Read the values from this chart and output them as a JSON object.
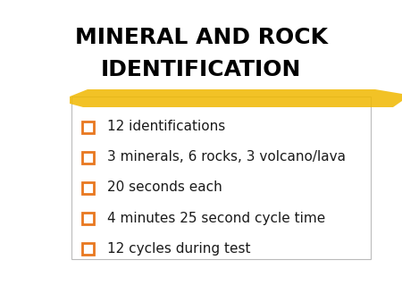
{
  "title_line1": "MINERAL AND ROCK",
  "title_line2": "IDENTIFICATION",
  "bullet_items": [
    "12 identifications",
    "3 minerals, 6 rocks, 3 volcano/lava",
    "20 seconds each",
    "4 minutes 25 second cycle time",
    "12 cycles during test"
  ],
  "bg_color": "#ffffff",
  "title_color": "#000000",
  "bullet_color": "#1a1a1a",
  "checkbox_color": "#e87820",
  "highlight_color": "#f0b800",
  "content_box_facecolor": "#ffffff",
  "content_box_edgecolor": "#bbbbbb",
  "title_fontsize": 18,
  "bullet_fontsize": 11,
  "figsize": [
    4.5,
    3.38
  ],
  "dpi": 100
}
